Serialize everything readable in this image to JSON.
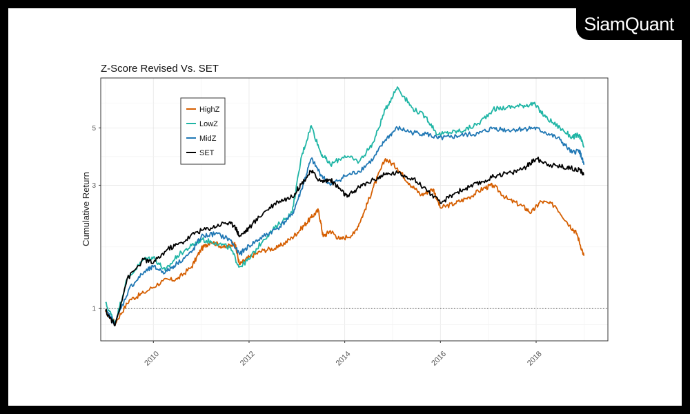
{
  "brand": {
    "text": "SiamQuant"
  },
  "chart_data": {
    "type": "line",
    "title": "Z-Score Revised Vs. SET",
    "xlabel": "",
    "ylabel": "Cumulative Return",
    "y_scale": "log",
    "ylim": [
      0.75,
      7.8
    ],
    "xlim": [
      2008.9,
      2019.5
    ],
    "y_ticks": [
      1,
      3,
      5
    ],
    "x_ticks": [
      2010,
      2012,
      2014,
      2016,
      2018
    ],
    "reference_line": {
      "y": 1,
      "style": "dotted"
    },
    "grid": true,
    "legend_position": "top-left",
    "series": [
      {
        "name": "HighZ",
        "color": "#d55e00",
        "points": [
          [
            2009.0,
            0.97
          ],
          [
            2009.2,
            0.88
          ],
          [
            2009.5,
            1.08
          ],
          [
            2009.8,
            1.15
          ],
          [
            2010.2,
            1.28
          ],
          [
            2010.5,
            1.3
          ],
          [
            2010.8,
            1.45
          ],
          [
            2011.0,
            1.7
          ],
          [
            2011.2,
            1.82
          ],
          [
            2011.5,
            1.72
          ],
          [
            2011.7,
            1.8
          ],
          [
            2011.8,
            1.48
          ],
          [
            2012.0,
            1.58
          ],
          [
            2012.3,
            1.68
          ],
          [
            2012.6,
            1.72
          ],
          [
            2012.9,
            1.88
          ],
          [
            2013.1,
            2.05
          ],
          [
            2013.3,
            2.25
          ],
          [
            2013.45,
            2.4
          ],
          [
            2013.55,
            1.9
          ],
          [
            2013.7,
            2.0
          ],
          [
            2013.9,
            1.85
          ],
          [
            2014.2,
            1.95
          ],
          [
            2014.4,
            2.35
          ],
          [
            2014.6,
            2.95
          ],
          [
            2014.85,
            3.8
          ],
          [
            2015.1,
            3.5
          ],
          [
            2015.35,
            3.05
          ],
          [
            2015.6,
            2.75
          ],
          [
            2015.85,
            2.9
          ],
          [
            2016.0,
            2.45
          ],
          [
            2016.3,
            2.55
          ],
          [
            2016.6,
            2.7
          ],
          [
            2016.9,
            2.92
          ],
          [
            2017.1,
            3.0
          ],
          [
            2017.4,
            2.65
          ],
          [
            2017.7,
            2.5
          ],
          [
            2017.9,
            2.35
          ],
          [
            2018.1,
            2.6
          ],
          [
            2018.4,
            2.5
          ],
          [
            2018.7,
            2.1
          ],
          [
            2018.85,
            1.95
          ],
          [
            2019.0,
            1.6
          ]
        ]
      },
      {
        "name": "LowZ",
        "color": "#1fb5a5",
        "points": [
          [
            2009.0,
            1.05
          ],
          [
            2009.2,
            0.88
          ],
          [
            2009.45,
            1.3
          ],
          [
            2009.8,
            1.55
          ],
          [
            2010.0,
            1.58
          ],
          [
            2010.25,
            1.4
          ],
          [
            2010.5,
            1.6
          ],
          [
            2010.8,
            1.75
          ],
          [
            2011.0,
            1.85
          ],
          [
            2011.3,
            1.8
          ],
          [
            2011.6,
            1.72
          ],
          [
            2011.8,
            1.45
          ],
          [
            2012.0,
            1.55
          ],
          [
            2012.3,
            1.85
          ],
          [
            2012.6,
            2.1
          ],
          [
            2012.9,
            2.35
          ],
          [
            2013.1,
            3.9
          ],
          [
            2013.3,
            5.1
          ],
          [
            2013.5,
            4.0
          ],
          [
            2013.7,
            3.6
          ],
          [
            2014.0,
            3.9
          ],
          [
            2014.3,
            3.7
          ],
          [
            2014.6,
            4.4
          ],
          [
            2014.85,
            5.9
          ],
          [
            2015.1,
            7.2
          ],
          [
            2015.4,
            6.0
          ],
          [
            2015.7,
            5.5
          ],
          [
            2015.95,
            4.7
          ],
          [
            2016.2,
            4.8
          ],
          [
            2016.5,
            4.9
          ],
          [
            2016.8,
            5.2
          ],
          [
            2017.1,
            5.9
          ],
          [
            2017.4,
            6.0
          ],
          [
            2017.7,
            6.1
          ],
          [
            2017.95,
            6.2
          ],
          [
            2018.2,
            5.5
          ],
          [
            2018.5,
            5.0
          ],
          [
            2018.75,
            4.6
          ],
          [
            2018.9,
            4.7
          ],
          [
            2019.0,
            4.2
          ]
        ]
      },
      {
        "name": "MidZ",
        "color": "#1f77b4",
        "points": [
          [
            2009.0,
            0.98
          ],
          [
            2009.2,
            0.88
          ],
          [
            2009.5,
            1.2
          ],
          [
            2009.8,
            1.38
          ],
          [
            2010.0,
            1.45
          ],
          [
            2010.25,
            1.38
          ],
          [
            2010.5,
            1.5
          ],
          [
            2010.8,
            1.65
          ],
          [
            2011.0,
            1.9
          ],
          [
            2011.3,
            1.95
          ],
          [
            2011.6,
            1.85
          ],
          [
            2011.8,
            1.62
          ],
          [
            2012.0,
            1.75
          ],
          [
            2012.3,
            1.9
          ],
          [
            2012.6,
            2.05
          ],
          [
            2012.9,
            2.3
          ],
          [
            2013.1,
            2.9
          ],
          [
            2013.3,
            3.8
          ],
          [
            2013.5,
            3.3
          ],
          [
            2013.7,
            3.0
          ],
          [
            2014.0,
            3.25
          ],
          [
            2014.3,
            3.4
          ],
          [
            2014.6,
            3.8
          ],
          [
            2014.85,
            4.5
          ],
          [
            2015.1,
            5.0
          ],
          [
            2015.4,
            4.8
          ],
          [
            2015.7,
            4.75
          ],
          [
            2015.95,
            4.55
          ],
          [
            2016.2,
            4.6
          ],
          [
            2016.5,
            4.7
          ],
          [
            2016.8,
            4.75
          ],
          [
            2017.1,
            5.0
          ],
          [
            2017.4,
            4.9
          ],
          [
            2017.7,
            4.95
          ],
          [
            2017.95,
            5.0
          ],
          [
            2018.2,
            4.8
          ],
          [
            2018.5,
            4.5
          ],
          [
            2018.75,
            4.0
          ],
          [
            2018.9,
            4.1
          ],
          [
            2019.0,
            3.6
          ]
        ]
      },
      {
        "name": "SET",
        "color": "#000000",
        "points": [
          [
            2009.0,
            0.98
          ],
          [
            2009.2,
            0.86
          ],
          [
            2009.45,
            1.3
          ],
          [
            2009.8,
            1.55
          ],
          [
            2010.0,
            1.5
          ],
          [
            2010.3,
            1.7
          ],
          [
            2010.6,
            1.8
          ],
          [
            2010.9,
            1.98
          ],
          [
            2011.2,
            2.05
          ],
          [
            2011.5,
            2.15
          ],
          [
            2011.7,
            2.1
          ],
          [
            2011.8,
            1.9
          ],
          [
            2012.0,
            2.05
          ],
          [
            2012.3,
            2.35
          ],
          [
            2012.6,
            2.6
          ],
          [
            2012.9,
            2.7
          ],
          [
            2013.1,
            3.05
          ],
          [
            2013.3,
            3.4
          ],
          [
            2013.5,
            3.1
          ],
          [
            2013.7,
            3.15
          ],
          [
            2013.9,
            2.9
          ],
          [
            2014.05,
            2.7
          ],
          [
            2014.3,
            2.95
          ],
          [
            2014.6,
            3.15
          ],
          [
            2014.85,
            3.3
          ],
          [
            2015.1,
            3.35
          ],
          [
            2015.4,
            3.2
          ],
          [
            2015.7,
            2.9
          ],
          [
            2016.0,
            2.55
          ],
          [
            2016.3,
            2.8
          ],
          [
            2016.6,
            2.95
          ],
          [
            2016.9,
            3.1
          ],
          [
            2017.2,
            3.3
          ],
          [
            2017.5,
            3.35
          ],
          [
            2017.8,
            3.55
          ],
          [
            2018.0,
            3.8
          ],
          [
            2018.3,
            3.6
          ],
          [
            2018.5,
            3.55
          ],
          [
            2018.7,
            3.5
          ],
          [
            2018.9,
            3.45
          ],
          [
            2019.0,
            3.3
          ]
        ]
      }
    ]
  }
}
